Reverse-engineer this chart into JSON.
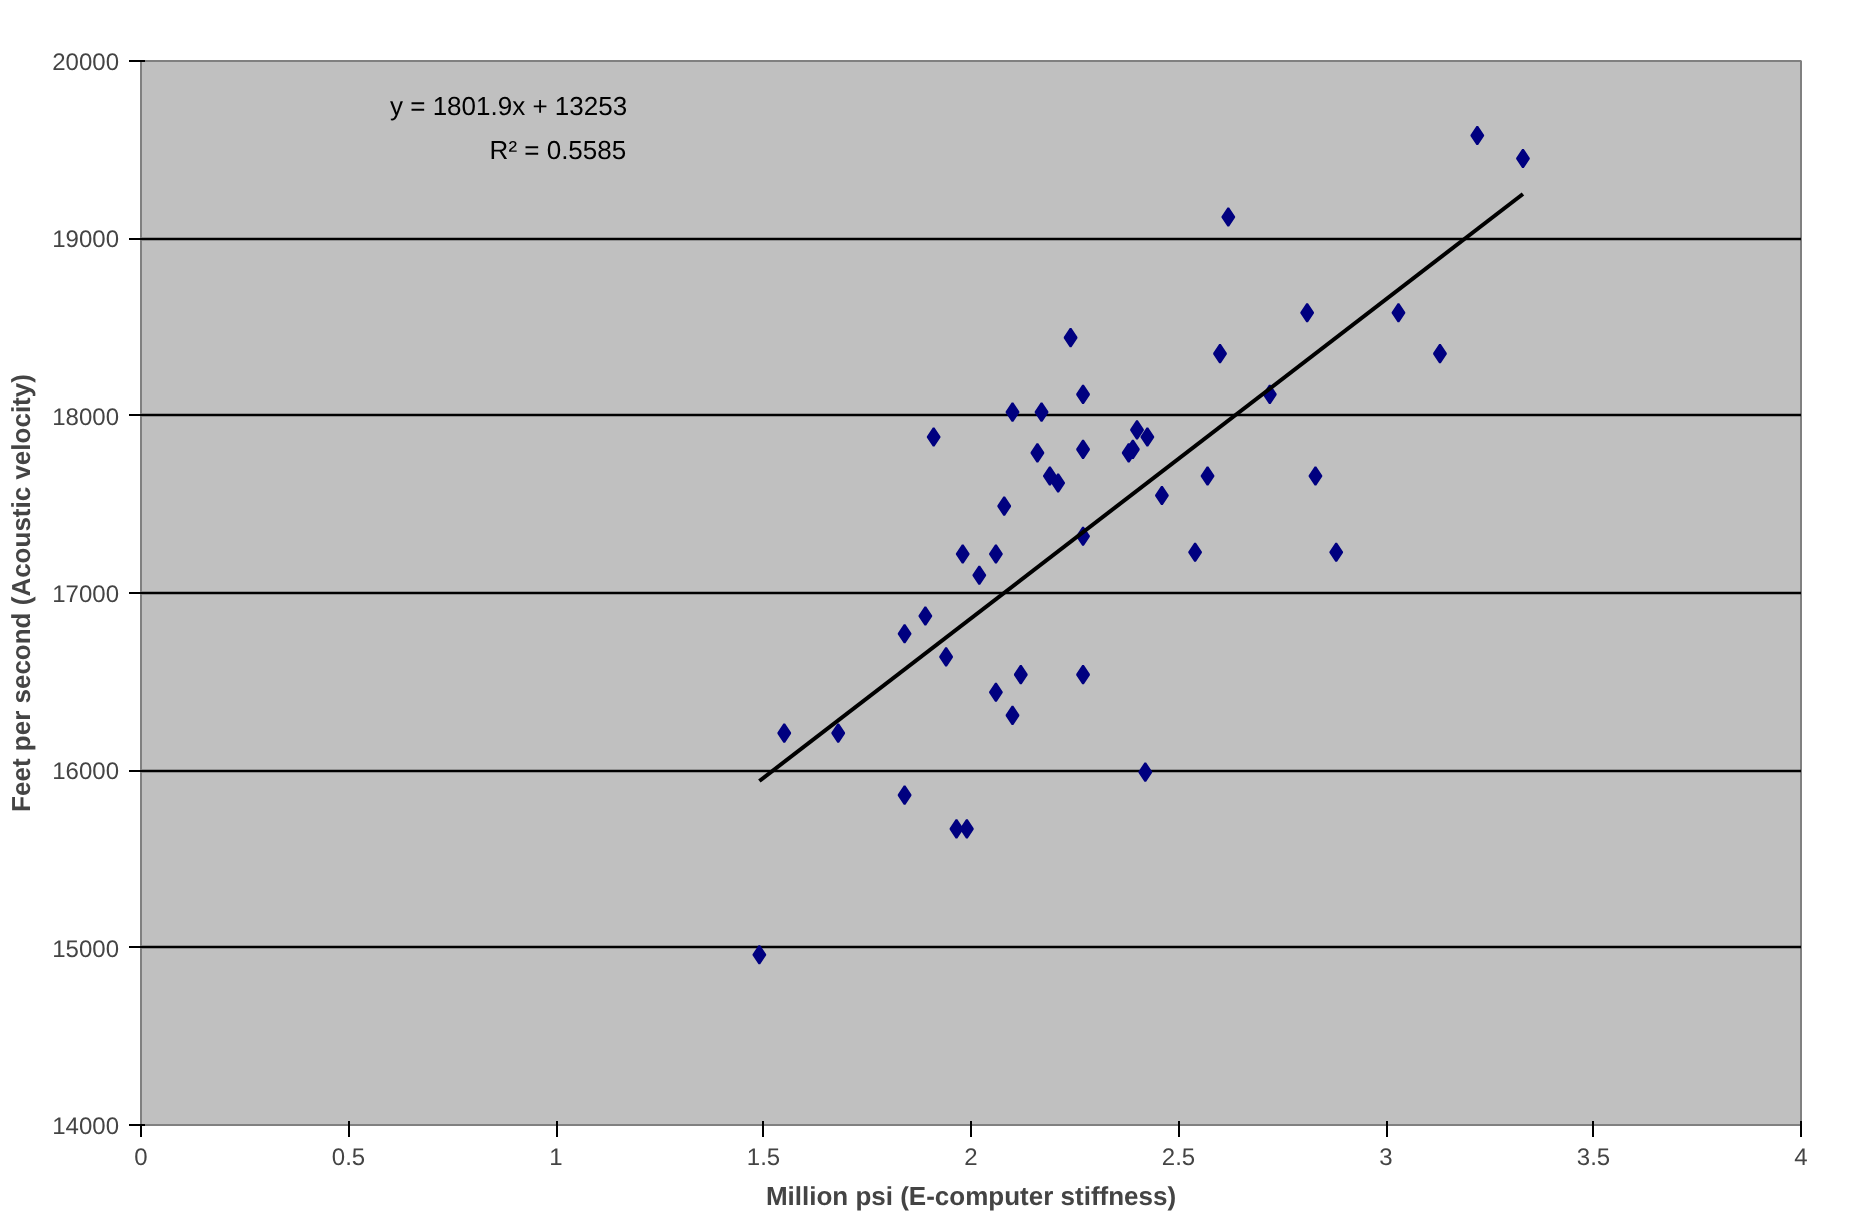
{
  "chart_data": {
    "type": "scatter",
    "xlabel": "Million psi (E-computer stiffness)",
    "ylabel": "Feet per second (Acoustic velocity)",
    "annotations": [
      "y = 1801.9x + 13253",
      "R² = 0.5585"
    ],
    "xlim": [
      0,
      4
    ],
    "xticks": [
      0,
      0.5,
      1,
      1.5,
      2,
      2.5,
      3,
      3.5,
      4
    ],
    "ylim": [
      14000,
      20000
    ],
    "yticks": [
      14000,
      15000,
      16000,
      17000,
      18000,
      19000,
      20000
    ],
    "grid": "y",
    "marker": "diamond",
    "series": [
      {
        "color": "#000080",
        "x": [
          1.49,
          1.55,
          1.68,
          1.84,
          1.89,
          1.84,
          1.91,
          1.94,
          1.98,
          1.965,
          1.99,
          2.02,
          2.06,
          2.06,
          2.08,
          2.1,
          2.1,
          2.12,
          2.16,
          2.17,
          2.19,
          2.21,
          2.24,
          2.27,
          2.27,
          2.27,
          2.27,
          2.38,
          2.39,
          2.4,
          2.425,
          2.42,
          2.46,
          2.54,
          2.57,
          2.6,
          2.62,
          2.72,
          2.81,
          2.83,
          2.88,
          3.03,
          3.13,
          3.22,
          3.33
        ],
        "values": [
          14960,
          16210,
          16210,
          16770,
          16870,
          15860,
          17880,
          16640,
          17220,
          15670,
          15670,
          17100,
          17220,
          16440,
          17490,
          16310,
          18020,
          16540,
          17790,
          18020,
          17660,
          17620,
          18440,
          17320,
          18120,
          17810,
          16540,
          17790,
          17810,
          17920,
          17880,
          15990,
          17550,
          17230,
          17660,
          18350,
          19120,
          18120,
          18580,
          17660,
          17230,
          18580,
          18350,
          19580,
          19450
        ]
      },
      {
        "type": "line",
        "color": "#000000",
        "marker": "none",
        "x": [
          1.49,
          3.33
        ],
        "values": [
          15940,
          19250
        ]
      }
    ]
  }
}
